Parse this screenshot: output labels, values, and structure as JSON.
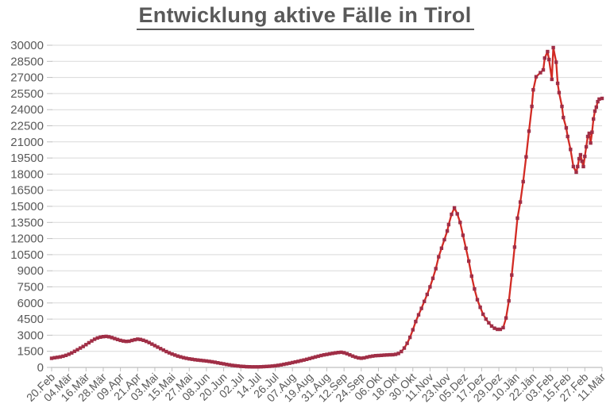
{
  "title": "Entwicklung aktive Fälle in Tirol",
  "colors": {
    "line": "#d22b24",
    "marker": "#a02e46",
    "grid": "#d9d9d9",
    "axis": "#bfbfbf",
    "label": "#595959",
    "title": "#595959"
  },
  "chart_data": {
    "type": "line",
    "title": "Entwicklung aktive Fälle in Tirol",
    "xlabel": "",
    "ylabel": "",
    "legend": "none",
    "grid": "horizontal",
    "marker": "square",
    "ylim": [
      0,
      30000
    ],
    "y_tick_step": 1500,
    "y_tick_labels": [
      "0",
      "1500",
      "3000",
      "4500",
      "6000",
      "7500",
      "9000",
      "10500",
      "12000",
      "13500",
      "15000",
      "16500",
      "18000",
      "19500",
      "21000",
      "22500",
      "24000",
      "25500",
      "27000",
      "28500",
      "30000"
    ],
    "x_tick_labels": [
      "20.Feb",
      "04.Mär",
      "16.Mär",
      "28.Mär",
      "09.Apr",
      "21.Apr",
      "03.Mai",
      "15.Mai",
      "27.Mai",
      "08.Jun",
      "20.Jun",
      "02.Jul",
      "14.Jul",
      "26.Jul",
      "07.Aug",
      "19.Aug",
      "31.Aug",
      "12.Sep",
      "24.Sep",
      "06.Okt",
      "18.Okt",
      "30.Okt",
      "11.Nov",
      "23.Nov",
      "05.Dez",
      "17.Dez",
      "29.Dez",
      "10.Jän",
      "22.Jän",
      "03.Feb",
      "15.Feb",
      "27.Feb",
      "11.Mär"
    ],
    "x_tick_interval_days": 12,
    "xlim_days": [
      0,
      384
    ],
    "points": [
      [
        0,
        850
      ],
      [
        2,
        900
      ],
      [
        4,
        940
      ],
      [
        6,
        980
      ],
      [
        8,
        1040
      ],
      [
        10,
        1120
      ],
      [
        12,
        1230
      ],
      [
        14,
        1350
      ],
      [
        16,
        1500
      ],
      [
        18,
        1650
      ],
      [
        20,
        1800
      ],
      [
        22,
        1950
      ],
      [
        24,
        2120
      ],
      [
        26,
        2300
      ],
      [
        28,
        2470
      ],
      [
        30,
        2620
      ],
      [
        32,
        2740
      ],
      [
        34,
        2820
      ],
      [
        36,
        2870
      ],
      [
        38,
        2890
      ],
      [
        40,
        2850
      ],
      [
        42,
        2780
      ],
      [
        44,
        2690
      ],
      [
        46,
        2600
      ],
      [
        48,
        2520
      ],
      [
        50,
        2460
      ],
      [
        52,
        2420
      ],
      [
        54,
        2440
      ],
      [
        56,
        2510
      ],
      [
        58,
        2580
      ],
      [
        60,
        2630
      ],
      [
        62,
        2600
      ],
      [
        64,
        2530
      ],
      [
        66,
        2430
      ],
      [
        68,
        2310
      ],
      [
        70,
        2170
      ],
      [
        72,
        2030
      ],
      [
        74,
        1890
      ],
      [
        76,
        1750
      ],
      [
        78,
        1610
      ],
      [
        80,
        1480
      ],
      [
        82,
        1360
      ],
      [
        84,
        1250
      ],
      [
        86,
        1150
      ],
      [
        88,
        1060
      ],
      [
        90,
        980
      ],
      [
        92,
        910
      ],
      [
        94,
        850
      ],
      [
        96,
        800
      ],
      [
        98,
        760
      ],
      [
        100,
        720
      ],
      [
        102,
        690
      ],
      [
        104,
        660
      ],
      [
        106,
        630
      ],
      [
        108,
        600
      ],
      [
        110,
        565
      ],
      [
        112,
        525
      ],
      [
        114,
        480
      ],
      [
        116,
        430
      ],
      [
        118,
        380
      ],
      [
        120,
        330
      ],
      [
        122,
        280
      ],
      [
        124,
        235
      ],
      [
        126,
        195
      ],
      [
        128,
        160
      ],
      [
        130,
        130
      ],
      [
        132,
        105
      ],
      [
        134,
        85
      ],
      [
        136,
        70
      ],
      [
        138,
        60
      ],
      [
        140,
        55
      ],
      [
        142,
        52
      ],
      [
        144,
        55
      ],
      [
        146,
        62
      ],
      [
        148,
        72
      ],
      [
        150,
        85
      ],
      [
        152,
        102
      ],
      [
        154,
        125
      ],
      [
        156,
        155
      ],
      [
        158,
        195
      ],
      [
        160,
        240
      ],
      [
        162,
        290
      ],
      [
        164,
        340
      ],
      [
        166,
        395
      ],
      [
        168,
        450
      ],
      [
        170,
        510
      ],
      [
        172,
        565
      ],
      [
        174,
        625
      ],
      [
        176,
        690
      ],
      [
        178,
        755
      ],
      [
        180,
        830
      ],
      [
        182,
        900
      ],
      [
        184,
        975
      ],
      [
        186,
        1045
      ],
      [
        188,
        1110
      ],
      [
        190,
        1165
      ],
      [
        192,
        1215
      ],
      [
        194,
        1260
      ],
      [
        196,
        1305
      ],
      [
        198,
        1350
      ],
      [
        200,
        1390
      ],
      [
        202,
        1410
      ],
      [
        204,
        1365
      ],
      [
        206,
        1275
      ],
      [
        208,
        1165
      ],
      [
        210,
        1055
      ],
      [
        212,
        960
      ],
      [
        214,
        890
      ],
      [
        216,
        860
      ],
      [
        218,
        890
      ],
      [
        220,
        950
      ],
      [
        222,
        1010
      ],
      [
        224,
        1060
      ],
      [
        226,
        1090
      ],
      [
        228,
        1105
      ],
      [
        230,
        1125
      ],
      [
        232,
        1145
      ],
      [
        234,
        1160
      ],
      [
        236,
        1175
      ],
      [
        238,
        1185
      ],
      [
        240,
        1220
      ],
      [
        242,
        1300
      ],
      [
        244,
        1480
      ],
      [
        246,
        1800
      ],
      [
        248,
        2250
      ],
      [
        250,
        2800
      ],
      [
        252,
        3500
      ],
      [
        254,
        4270
      ],
      [
        256,
        4900
      ],
      [
        258,
        5500
      ],
      [
        260,
        6150
      ],
      [
        262,
        6800
      ],
      [
        264,
        7500
      ],
      [
        266,
        8300
      ],
      [
        268,
        9200
      ],
      [
        270,
        10300
      ],
      [
        272,
        11100
      ],
      [
        274,
        11900
      ],
      [
        276,
        12700
      ],
      [
        277,
        13300
      ],
      [
        279,
        14250
      ],
      [
        281,
        14860
      ],
      [
        283,
        14300
      ],
      [
        285,
        13500
      ],
      [
        287,
        12300
      ],
      [
        289,
        11100
      ],
      [
        291,
        9900
      ],
      [
        293,
        8500
      ],
      [
        295,
        7300
      ],
      [
        297,
        6300
      ],
      [
        299,
        5600
      ],
      [
        301,
        4950
      ],
      [
        303,
        4500
      ],
      [
        305,
        4150
      ],
      [
        307,
        3850
      ],
      [
        309,
        3650
      ],
      [
        311,
        3550
      ],
      [
        313,
        3550
      ],
      [
        315,
        3700
      ],
      [
        317,
        4600
      ],
      [
        319,
        6200
      ],
      [
        321,
        8600
      ],
      [
        323,
        11200
      ],
      [
        325,
        13900
      ],
      [
        327,
        15400
      ],
      [
        329,
        17300
      ],
      [
        331,
        19600
      ],
      [
        333,
        22000
      ],
      [
        335,
        24300
      ],
      [
        336,
        25850
      ],
      [
        338,
        27070
      ],
      [
        341,
        27440
      ],
      [
        343,
        27700
      ],
      [
        344,
        28800
      ],
      [
        346,
        29410
      ],
      [
        347,
        28670
      ],
      [
        349,
        26820
      ],
      [
        350,
        29780
      ],
      [
        352,
        28420
      ],
      [
        353,
        26450
      ],
      [
        354,
        25590
      ],
      [
        356,
        24300
      ],
      [
        357,
        23270
      ],
      [
        359,
        22300
      ],
      [
        360,
        21500
      ],
      [
        362,
        20300
      ],
      [
        364,
        18700
      ],
      [
        366,
        18180
      ],
      [
        367,
        18700
      ],
      [
        368,
        19430
      ],
      [
        369,
        19800
      ],
      [
        370,
        19200
      ],
      [
        371,
        18700
      ],
      [
        372,
        19650
      ],
      [
        373,
        20540
      ],
      [
        374,
        21500
      ],
      [
        375,
        21800
      ],
      [
        376,
        20900
      ],
      [
        377,
        21900
      ],
      [
        378,
        23130
      ],
      [
        379,
        23870
      ],
      [
        380,
        24240
      ],
      [
        381,
        24750
      ],
      [
        382,
        24980
      ],
      [
        384,
        25050
      ]
    ]
  }
}
